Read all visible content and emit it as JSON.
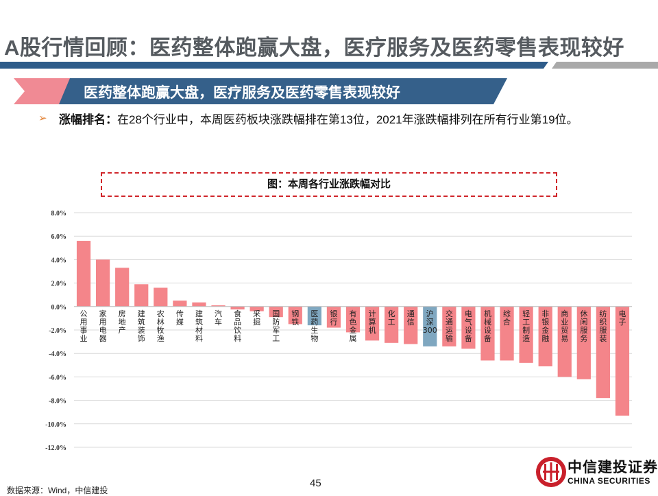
{
  "header": {
    "title": "A股行情回顾：医药整体跑赢大盘，医疗服务及医药零售表现较好"
  },
  "banner": {
    "text": "医药整体跑赢大盘，医疗服务及医药零售表现较好"
  },
  "bullet": {
    "lead": "涨幅排名：",
    "body": "在28个行业中，本周医药板块涨跌幅排在第13位，2021年涨跌幅排列在所有行业第19位。"
  },
  "footer": {
    "source": "数据来源：Wind，中信建投",
    "page": "45",
    "logo_cn": "中信建投证券",
    "logo_en": "CHINA SECURITIES"
  },
  "colors": {
    "bar": "#f4858a",
    "bar_highlight": "#7fa7c0",
    "accent_red": "#e8323c",
    "banner_blue": "#35608a",
    "banner_pink": "#f08a94",
    "rule_blue": "#2e5c8a"
  },
  "chart_data": {
    "type": "bar",
    "title": "图：本周各行业涨跌幅对比",
    "ylim": [
      -12,
      8
    ],
    "yticks": [
      "8.0%",
      "6.0%",
      "4.0%",
      "2.0%",
      "0.0%",
      "-2.0%",
      "-4.0%",
      "-6.0%",
      "-8.0%",
      "-10.0%",
      "-12.0%"
    ],
    "grid": true,
    "categories": [
      "公用事业",
      "家用电器",
      "房地产",
      "建筑装饰",
      "农林牧渔",
      "传媒",
      "建筑材料",
      "汽车",
      "食品饮料",
      "采掘",
      "国防军工",
      "钢铁",
      "医药生物",
      "银行",
      "有色金属",
      "计算机",
      "化工",
      "通信",
      "沪深300",
      "交通运输",
      "电气设备",
      "机械设备",
      "综合",
      "轻工制造",
      "非银金融",
      "商业贸易",
      "休闲服务",
      "纺织服装",
      "电子"
    ],
    "values": [
      5.6,
      4.0,
      3.3,
      1.9,
      1.6,
      0.5,
      0.35,
      0.1,
      -0.25,
      -0.4,
      -0.9,
      -1.5,
      -1.6,
      -1.8,
      -2.2,
      -2.9,
      -3.1,
      -3.2,
      -3.4,
      -3.4,
      -3.6,
      -4.6,
      -4.6,
      -4.8,
      -5.1,
      -6.0,
      -6.2,
      -7.8,
      -9.3
    ],
    "highlight": [
      "医药生物",
      "沪深300"
    ]
  }
}
